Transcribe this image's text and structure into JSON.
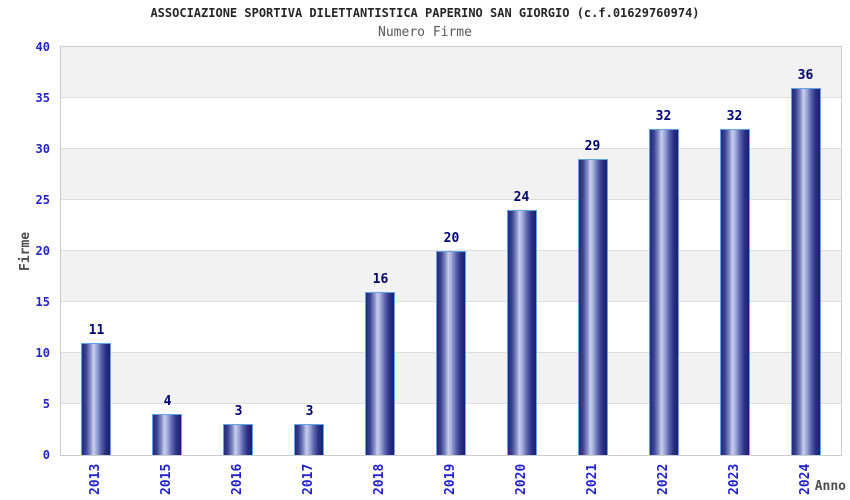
{
  "header": {
    "title": "ASSOCIAZIONE SPORTIVA DILETTANTISTICA PAPERINO SAN GIORGIO (c.f.01629760974)",
    "subtitle": "Numero Firme"
  },
  "chart_data": {
    "type": "bar",
    "title": "ASSOCIAZIONE SPORTIVA DILETTANTISTICA PAPERINO SAN GIORGIO (c.f.01629760974)",
    "subtitle": "Numero Firme",
    "categories": [
      "2013",
      "2015",
      "2016",
      "2017",
      "2018",
      "2019",
      "2020",
      "2021",
      "2022",
      "2023",
      "2024"
    ],
    "values": [
      11,
      4,
      3,
      3,
      16,
      20,
      24,
      29,
      32,
      32,
      36
    ],
    "xlabel": "Anno",
    "ylabel": "Firme",
    "ylim": [
      0,
      40
    ],
    "yticks": [
      0,
      5,
      10,
      15,
      20,
      25,
      30,
      35,
      40
    ],
    "grid": "horizontal-bands-alternating",
    "legend": false,
    "bar_value_labels_shown": true
  },
  "style": {
    "tick_label_color": "#2323cb",
    "value_label_color": "#000070",
    "title_color": "#262626",
    "subtitle_color": "#595959",
    "axis_title_color": "#4d4d4d",
    "band_gray": "#f2f2f2",
    "band_white": "#ffffff",
    "gridline_color": "#dedede",
    "plot_border_color": "#cccccc",
    "bar_border_color": "#63a3e8",
    "bar_gradient_stops": [
      "#242a7e",
      "#3a4291",
      "#8d97cc",
      "#c7cdec",
      "#aab2de",
      "#5a64ad",
      "#2b3185",
      "#1b1f70"
    ]
  }
}
